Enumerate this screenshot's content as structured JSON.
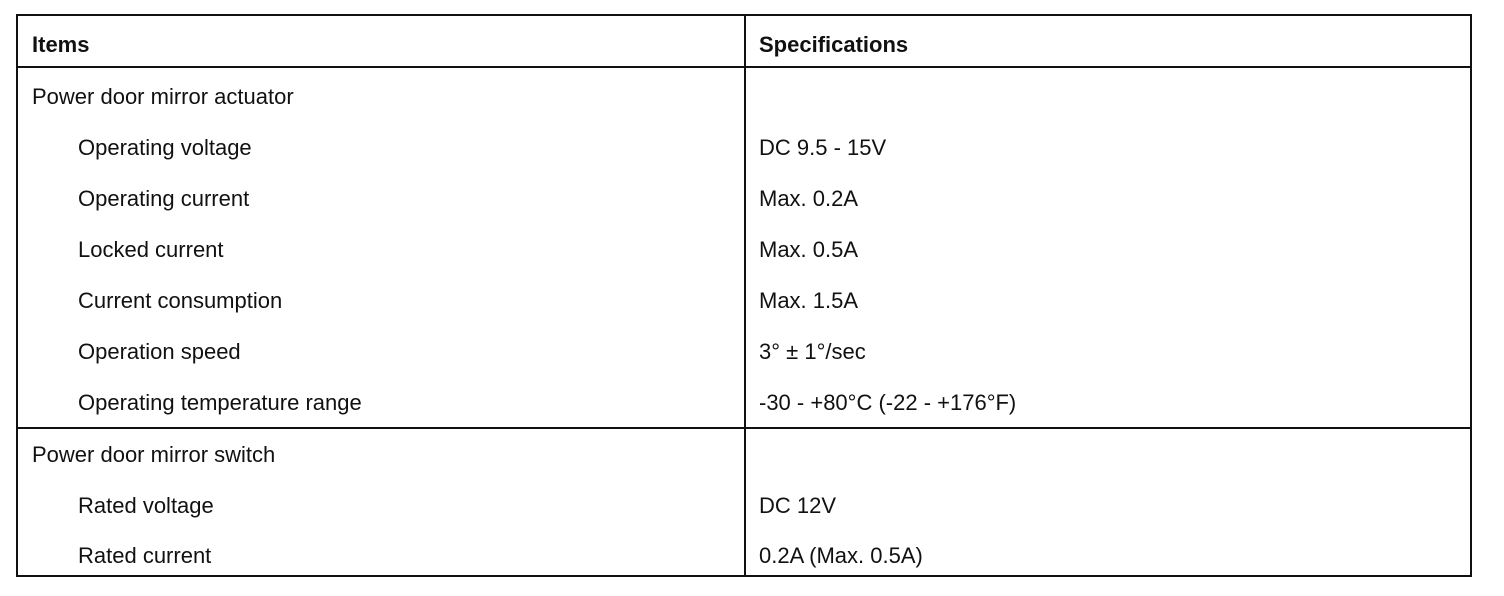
{
  "headers": {
    "items": "Items",
    "specifications": "Specifications"
  },
  "sections": [
    {
      "title": "Power door mirror actuator",
      "rows": [
        {
          "item": "Operating voltage",
          "spec": "DC 9.5 - 15V"
        },
        {
          "item": "Operating current",
          "spec": "Max. 0.2A"
        },
        {
          "item": "Locked current",
          "spec": "Max. 0.5A"
        },
        {
          "item": "Current consumption",
          "spec": "Max. 1.5A"
        },
        {
          "item": "Operation speed",
          "spec": "3° ± 1°/sec"
        },
        {
          "item": "Operating temperature range",
          "spec": "-30 - +80°C (-22 - +176°F)"
        }
      ]
    },
    {
      "title": "Power door mirror switch",
      "rows": [
        {
          "item": "Rated voltage",
          "spec": "DC 12V"
        },
        {
          "item": "Rated current",
          "spec": "0.2A (Max. 0.5A)"
        }
      ]
    }
  ]
}
